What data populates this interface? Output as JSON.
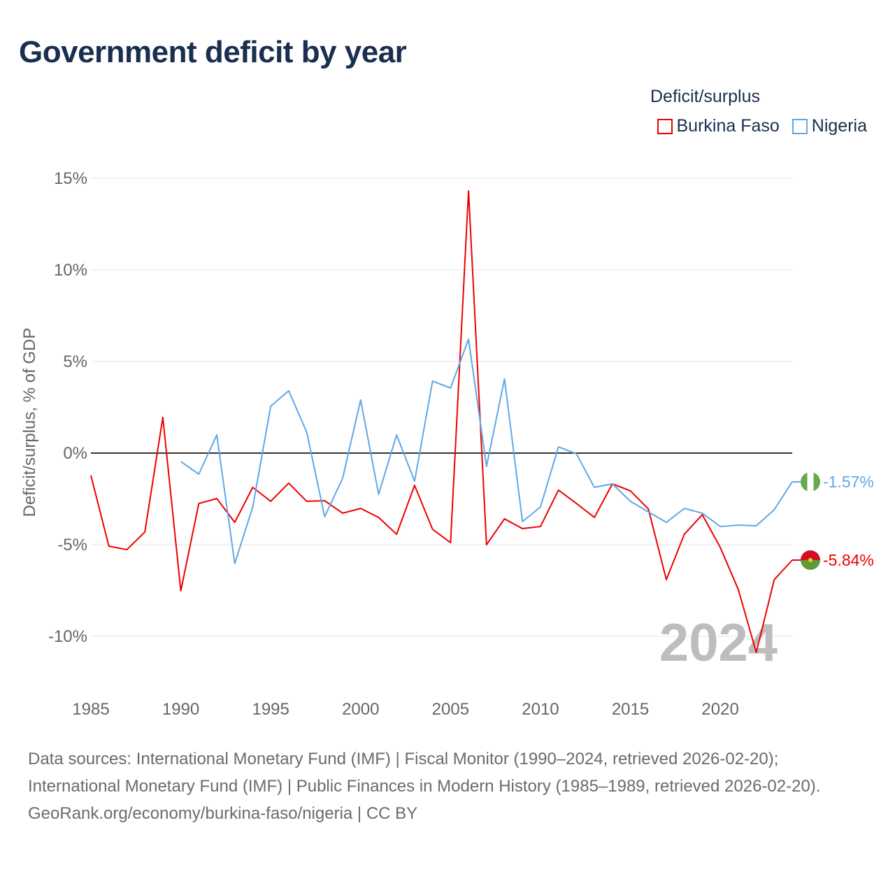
{
  "title": "Government deficit by year",
  "legend": {
    "title": "Deficit/surplus"
  },
  "footer": {
    "sources": "Data sources: International Monetary Fund (IMF) | Fiscal Monitor (1990–2024, retrieved 2026-02-20); International Monetary Fund (IMF) | Public Finances in Modern History (1985–1989, retrieved 2026-02-20).",
    "credit": "GeoRank.org/economy/burkina-faso/nigeria | CC BY"
  },
  "chart_data": {
    "type": "line",
    "title": "Government deficit by year",
    "xlabel": "",
    "ylabel": "Deficit/surplus, % of GDP",
    "xlim": [
      1985,
      2024
    ],
    "ylim": [
      -12.5,
      15
    ],
    "x_ticks": [
      "1985",
      "1990",
      "1995",
      "2000",
      "2005",
      "2010",
      "2015",
      "2020"
    ],
    "y_ticks": [
      {
        "v": 15,
        "label": "15%"
      },
      {
        "v": 10,
        "label": "10%"
      },
      {
        "v": 5,
        "label": "5%"
      },
      {
        "v": 0,
        "label": "0%"
      },
      {
        "v": -5,
        "label": "-5%"
      },
      {
        "v": -10,
        "label": "-10%"
      }
    ],
    "grid": true,
    "year_watermark": "2024",
    "legend_position": "top-right",
    "series": [
      {
        "name": "Burkina Faso",
        "color": "#ee0000",
        "flag": "burkina-faso",
        "end_label": "-5.84%",
        "start": 1985,
        "values": [
          -1.22,
          -5.08,
          -5.27,
          -4.31,
          1.95,
          -7.52,
          -2.75,
          -2.48,
          -3.78,
          -1.87,
          -2.63,
          -1.64,
          -2.63,
          -2.6,
          -3.28,
          -3.02,
          -3.51,
          -4.43,
          -1.76,
          -4.16,
          -4.89,
          14.31,
          -5.0,
          -3.59,
          -4.12,
          -4.01,
          -2.02,
          -2.75,
          -3.51,
          -1.68,
          -2.06,
          -3.05,
          -6.91,
          -4.43,
          -3.36,
          -5.15,
          -7.44,
          -10.88,
          -6.91,
          -5.84
        ]
      },
      {
        "name": "Nigeria",
        "color": "#5fa8e8",
        "flag": "nigeria",
        "end_label": "-1.57%",
        "start": 1990,
        "values": [
          -0.46,
          -1.15,
          0.99,
          -6.03,
          -2.94,
          2.56,
          3.4,
          1.15,
          -3.47,
          -1.37,
          2.9,
          -2.25,
          0.99,
          -1.53,
          3.93,
          3.55,
          6.22,
          -0.73,
          4.05,
          -3.74,
          -2.94,
          0.34,
          -0.04,
          -1.87,
          -1.68,
          -2.63,
          -3.21,
          -3.78,
          -3.02,
          -3.28,
          -4.01,
          -3.93,
          -3.97,
          -3.09,
          -1.57
        ]
      }
    ]
  }
}
